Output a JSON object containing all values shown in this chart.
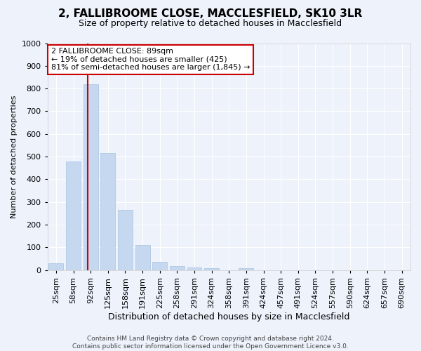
{
  "title1": "2, FALLIBROOME CLOSE, MACCLESFIELD, SK10 3LR",
  "title2": "Size of property relative to detached houses in Macclesfield",
  "xlabel": "Distribution of detached houses by size in Macclesfield",
  "ylabel": "Number of detached properties",
  "categories": [
    "25sqm",
    "58sqm",
    "92sqm",
    "125sqm",
    "158sqm",
    "191sqm",
    "225sqm",
    "258sqm",
    "291sqm",
    "324sqm",
    "358sqm",
    "391sqm",
    "424sqm",
    "457sqm",
    "491sqm",
    "524sqm",
    "557sqm",
    "590sqm",
    "624sqm",
    "657sqm",
    "690sqm"
  ],
  "values": [
    30,
    480,
    820,
    515,
    265,
    110,
    38,
    18,
    13,
    10,
    0,
    10,
    0,
    0,
    0,
    0,
    0,
    0,
    0,
    0,
    0
  ],
  "bar_color": "#c5d8f0",
  "bar_edgecolor": "#a8c4e0",
  "vline_x": 1.85,
  "vline_color": "#cc0000",
  "ylim": [
    0,
    1000
  ],
  "yticks": [
    0,
    100,
    200,
    300,
    400,
    500,
    600,
    700,
    800,
    900,
    1000
  ],
  "annotation_line1": "2 FALLIBROOME CLOSE: 89sqm",
  "annotation_line2": "← 19% of detached houses are smaller (425)",
  "annotation_line3": "81% of semi-detached houses are larger (1,845) →",
  "annotation_box_facecolor": "#ffffff",
  "annotation_box_edgecolor": "#cc0000",
  "footer1": "Contains HM Land Registry data © Crown copyright and database right 2024.",
  "footer2": "Contains public sector information licensed under the Open Government Licence v3.0.",
  "bg_color": "#edf2fb",
  "plot_bg_color": "#edf2fb",
  "grid_color": "#ffffff",
  "title1_fontsize": 11,
  "title2_fontsize": 9,
  "xlabel_fontsize": 9,
  "ylabel_fontsize": 8,
  "tick_fontsize": 8,
  "annot_fontsize": 8
}
